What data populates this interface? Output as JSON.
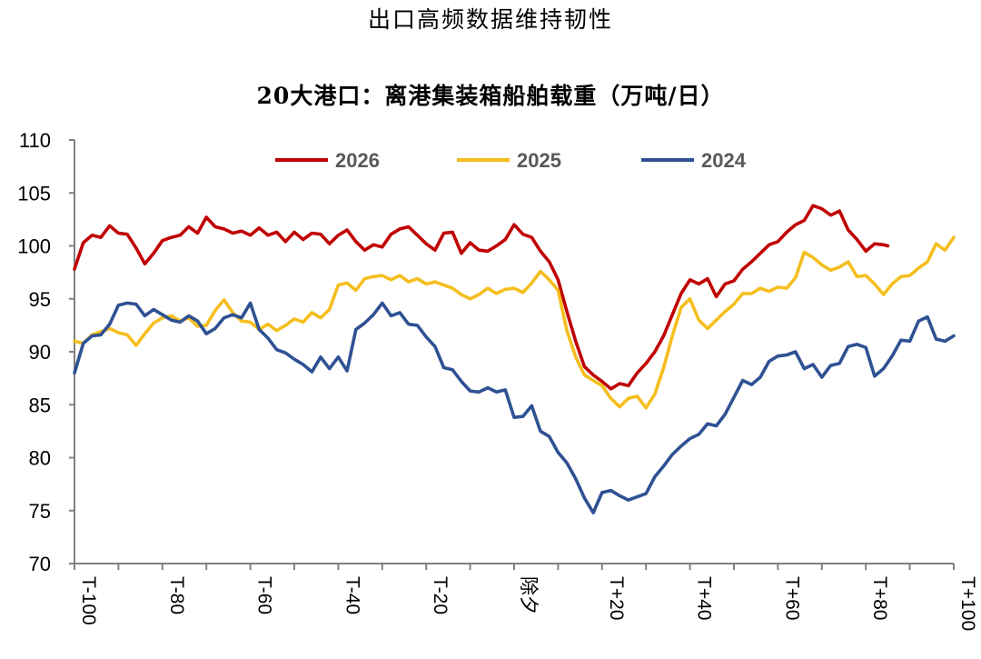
{
  "header": {
    "title": "出口高频数据维持韧性"
  },
  "chart_data": {
    "type": "line",
    "title": "20大港口：离港集装箱船舶载重（万吨/日）",
    "xlabel": "",
    "ylabel": "",
    "x_range": [
      -100,
      100
    ],
    "ylim": [
      70,
      110
    ],
    "y_ticks": [
      "70",
      "75",
      "80",
      "85",
      "90",
      "95",
      "100",
      "105",
      "110"
    ],
    "x_ticks": [
      {
        "x": -100,
        "label": "T-100"
      },
      {
        "x": -80,
        "label": "T-80"
      },
      {
        "x": -60,
        "label": "T-60"
      },
      {
        "x": -40,
        "label": "T-40"
      },
      {
        "x": -20,
        "label": "T-20"
      },
      {
        "x": 0,
        "label": "除夕"
      },
      {
        "x": 20,
        "label": "T+20"
      },
      {
        "x": 40,
        "label": "T+40"
      },
      {
        "x": 60,
        "label": "T+60"
      },
      {
        "x": 80,
        "label": "T+80"
      },
      {
        "x": 100,
        "label": "T+100"
      }
    ],
    "grid": false,
    "legend_position": "top",
    "series": [
      {
        "name": "2026",
        "color": "#C00000",
        "points": [
          [
            -100,
            97.8
          ],
          [
            -98,
            100.3
          ],
          [
            -96,
            101
          ],
          [
            -94,
            100.8
          ],
          [
            -92,
            101.9
          ],
          [
            -90,
            101.2
          ],
          [
            -88,
            101.1
          ],
          [
            -86,
            99.8
          ],
          [
            -84,
            98.3
          ],
          [
            -82,
            99.3
          ],
          [
            -80,
            100.5
          ],
          [
            -78,
            100.8
          ],
          [
            -76,
            101
          ],
          [
            -74,
            101.8
          ],
          [
            -72,
            101.2
          ],
          [
            -70,
            102.7
          ],
          [
            -68,
            101.8
          ],
          [
            -66,
            101.6
          ],
          [
            -64,
            101.2
          ],
          [
            -62,
            101.4
          ],
          [
            -60,
            101
          ],
          [
            -58,
            101.7
          ],
          [
            -56,
            101
          ],
          [
            -54,
            101.3
          ],
          [
            -52,
            100.4
          ],
          [
            -50,
            101.3
          ],
          [
            -48,
            100.6
          ],
          [
            -46,
            101.2
          ],
          [
            -44,
            101.1
          ],
          [
            -42,
            100.2
          ],
          [
            -40,
            101
          ],
          [
            -38,
            101.5
          ],
          [
            -36,
            100.4
          ],
          [
            -34,
            99.6
          ],
          [
            -32,
            100.1
          ],
          [
            -30,
            99.9
          ],
          [
            -28,
            101.1
          ],
          [
            -26,
            101.6
          ],
          [
            -24,
            101.8
          ],
          [
            -22,
            101
          ],
          [
            -20,
            100.2
          ],
          [
            -18,
            99.6
          ],
          [
            -16,
            101.2
          ],
          [
            -14,
            101.3
          ],
          [
            -12,
            99.3
          ],
          [
            -10,
            100.3
          ],
          [
            -8,
            99.6
          ],
          [
            -6,
            99.5
          ],
          [
            -4,
            100
          ],
          [
            -2,
            100.6
          ],
          [
            0,
            102
          ],
          [
            2,
            101.1
          ],
          [
            4,
            100.8
          ],
          [
            6,
            99.5
          ],
          [
            8,
            98.5
          ],
          [
            10,
            96.8
          ],
          [
            12,
            93.8
          ],
          [
            14,
            91
          ],
          [
            16,
            88.6
          ],
          [
            18,
            87.8
          ],
          [
            20,
            87.2
          ],
          [
            22,
            86.5
          ],
          [
            24,
            87
          ],
          [
            26,
            86.8
          ],
          [
            28,
            88
          ],
          [
            30,
            88.9
          ],
          [
            32,
            90
          ],
          [
            34,
            91.5
          ],
          [
            36,
            93.5
          ],
          [
            38,
            95.5
          ],
          [
            40,
            96.8
          ],
          [
            42,
            96.4
          ],
          [
            44,
            96.9
          ],
          [
            46,
            95.2
          ],
          [
            48,
            96.4
          ],
          [
            50,
            96.7
          ],
          [
            52,
            97.8
          ],
          [
            54,
            98.5
          ],
          [
            56,
            99.3
          ],
          [
            58,
            100.1
          ],
          [
            60,
            100.4
          ],
          [
            62,
            101.3
          ],
          [
            64,
            102
          ],
          [
            66,
            102.4
          ],
          [
            68,
            103.8
          ],
          [
            70,
            103.5
          ],
          [
            72,
            102.9
          ],
          [
            74,
            103.3
          ],
          [
            76,
            101.5
          ],
          [
            78,
            100.6
          ],
          [
            80,
            99.5
          ],
          [
            82,
            100.2
          ],
          [
            84,
            100.1
          ],
          [
            85,
            100
          ]
        ]
      },
      {
        "name": "2025",
        "color": "#F5BE1E",
        "points": [
          [
            -100,
            91
          ],
          [
            -98,
            90.8
          ],
          [
            -96,
            91.6
          ],
          [
            -94,
            91.9
          ],
          [
            -92,
            92.2
          ],
          [
            -90,
            91.8
          ],
          [
            -88,
            91.6
          ],
          [
            -86,
            90.6
          ],
          [
            -84,
            91.7
          ],
          [
            -82,
            92.7
          ],
          [
            -80,
            93.2
          ],
          [
            -78,
            93.4
          ],
          [
            -76,
            92.9
          ],
          [
            -74,
            93.2
          ],
          [
            -72,
            92.4
          ],
          [
            -70,
            92.5
          ],
          [
            -68,
            93.9
          ],
          [
            -66,
            94.9
          ],
          [
            -64,
            93.7
          ],
          [
            -62,
            92.9
          ],
          [
            -60,
            92.8
          ],
          [
            -58,
            92.1
          ],
          [
            -56,
            92.6
          ],
          [
            -54,
            92
          ],
          [
            -52,
            92.5
          ],
          [
            -50,
            93.1
          ],
          [
            -48,
            92.8
          ],
          [
            -46,
            93.7
          ],
          [
            -44,
            93.2
          ],
          [
            -42,
            94
          ],
          [
            -40,
            96.3
          ],
          [
            -38,
            96.5
          ],
          [
            -36,
            95.8
          ],
          [
            -34,
            96.9
          ],
          [
            -32,
            97.1
          ],
          [
            -30,
            97.2
          ],
          [
            -28,
            96.8
          ],
          [
            -26,
            97.2
          ],
          [
            -24,
            96.6
          ],
          [
            -22,
            96.9
          ],
          [
            -20,
            96.4
          ],
          [
            -18,
            96.6
          ],
          [
            -16,
            96.3
          ],
          [
            -14,
            96
          ],
          [
            -12,
            95.4
          ],
          [
            -10,
            95
          ],
          [
            -8,
            95.4
          ],
          [
            -6,
            96
          ],
          [
            -4,
            95.5
          ],
          [
            -2,
            95.9
          ],
          [
            0,
            96
          ],
          [
            2,
            95.6
          ],
          [
            4,
            96.5
          ],
          [
            6,
            97.6
          ],
          [
            8,
            96.8
          ],
          [
            10,
            95.8
          ],
          [
            12,
            92
          ],
          [
            14,
            89.5
          ],
          [
            16,
            87.8
          ],
          [
            18,
            87.3
          ],
          [
            20,
            86.8
          ],
          [
            22,
            85.6
          ],
          [
            24,
            84.8
          ],
          [
            26,
            85.6
          ],
          [
            28,
            85.8
          ],
          [
            30,
            84.7
          ],
          [
            32,
            86
          ],
          [
            34,
            88.5
          ],
          [
            36,
            91.5
          ],
          [
            38,
            94.2
          ],
          [
            40,
            95
          ],
          [
            42,
            93
          ],
          [
            44,
            92.2
          ],
          [
            46,
            93
          ],
          [
            48,
            93.8
          ],
          [
            50,
            94.5
          ],
          [
            52,
            95.5
          ],
          [
            54,
            95.5
          ],
          [
            56,
            96
          ],
          [
            58,
            95.7
          ],
          [
            60,
            96.1
          ],
          [
            62,
            96
          ],
          [
            64,
            97
          ],
          [
            66,
            99.4
          ],
          [
            68,
            98.9
          ],
          [
            70,
            98.2
          ],
          [
            72,
            97.7
          ],
          [
            74,
            98
          ],
          [
            76,
            98.5
          ],
          [
            78,
            97.1
          ],
          [
            80,
            97.2
          ],
          [
            82,
            96.4
          ],
          [
            84,
            95.4
          ],
          [
            86,
            96.4
          ],
          [
            88,
            97.1
          ],
          [
            90,
            97.2
          ],
          [
            92,
            97.9
          ],
          [
            94,
            98.5
          ],
          [
            96,
            100.2
          ],
          [
            98,
            99.6
          ],
          [
            100,
            100.8
          ]
        ]
      },
      {
        "name": "2024",
        "color": "#2E5193",
        "points": [
          [
            -100,
            88
          ],
          [
            -98,
            90.8
          ],
          [
            -96,
            91.5
          ],
          [
            -94,
            91.6
          ],
          [
            -92,
            92.6
          ],
          [
            -90,
            94.4
          ],
          [
            -88,
            94.6
          ],
          [
            -86,
            94.5
          ],
          [
            -84,
            93.4
          ],
          [
            -82,
            94
          ],
          [
            -80,
            93.5
          ],
          [
            -78,
            93
          ],
          [
            -76,
            92.8
          ],
          [
            -74,
            93.4
          ],
          [
            -72,
            92.9
          ],
          [
            -70,
            91.7
          ],
          [
            -68,
            92.2
          ],
          [
            -66,
            93.2
          ],
          [
            -64,
            93.5
          ],
          [
            -62,
            93.2
          ],
          [
            -60,
            94.6
          ],
          [
            -58,
            92.1
          ],
          [
            -56,
            91.3
          ],
          [
            -54,
            90.2
          ],
          [
            -52,
            89.9
          ],
          [
            -50,
            89.3
          ],
          [
            -48,
            88.8
          ],
          [
            -46,
            88.1
          ],
          [
            -44,
            89.5
          ],
          [
            -42,
            88.4
          ],
          [
            -40,
            89.5
          ],
          [
            -38,
            88.2
          ],
          [
            -36,
            92.1
          ],
          [
            -34,
            92.7
          ],
          [
            -32,
            93.5
          ],
          [
            -30,
            94.6
          ],
          [
            -28,
            93.4
          ],
          [
            -26,
            93.7
          ],
          [
            -24,
            92.6
          ],
          [
            -22,
            92.5
          ],
          [
            -20,
            91.4
          ],
          [
            -18,
            90.5
          ],
          [
            -16,
            88.5
          ],
          [
            -14,
            88.3
          ],
          [
            -12,
            87.2
          ],
          [
            -10,
            86.3
          ],
          [
            -8,
            86.2
          ],
          [
            -6,
            86.6
          ],
          [
            -4,
            86.2
          ],
          [
            -2,
            86.4
          ],
          [
            0,
            83.8
          ],
          [
            2,
            83.9
          ],
          [
            4,
            84.9
          ],
          [
            6,
            82.5
          ],
          [
            8,
            82
          ],
          [
            10,
            80.5
          ],
          [
            12,
            79.5
          ],
          [
            14,
            78
          ],
          [
            16,
            76.2
          ],
          [
            18,
            74.8
          ],
          [
            20,
            76.7
          ],
          [
            22,
            76.9
          ],
          [
            24,
            76.4
          ],
          [
            26,
            76
          ],
          [
            28,
            76.3
          ],
          [
            30,
            76.6
          ],
          [
            32,
            78.2
          ],
          [
            34,
            79.2
          ],
          [
            36,
            80.3
          ],
          [
            38,
            81.1
          ],
          [
            40,
            81.8
          ],
          [
            42,
            82.2
          ],
          [
            44,
            83.2
          ],
          [
            46,
            83
          ],
          [
            48,
            84.1
          ],
          [
            50,
            85.7
          ],
          [
            52,
            87.3
          ],
          [
            54,
            86.9
          ],
          [
            56,
            87.6
          ],
          [
            58,
            89.1
          ],
          [
            60,
            89.6
          ],
          [
            62,
            89.7
          ],
          [
            64,
            90
          ],
          [
            66,
            88.4
          ],
          [
            68,
            88.8
          ],
          [
            70,
            87.6
          ],
          [
            72,
            88.7
          ],
          [
            74,
            88.9
          ],
          [
            76,
            90.5
          ],
          [
            78,
            90.7
          ],
          [
            80,
            90.4
          ],
          [
            82,
            87.7
          ],
          [
            84,
            88.4
          ],
          [
            86,
            89.6
          ],
          [
            88,
            91.1
          ],
          [
            90,
            91
          ],
          [
            92,
            92.9
          ],
          [
            94,
            93.3
          ],
          [
            96,
            91.2
          ],
          [
            98,
            91
          ],
          [
            100,
            91.5
          ]
        ]
      }
    ]
  }
}
